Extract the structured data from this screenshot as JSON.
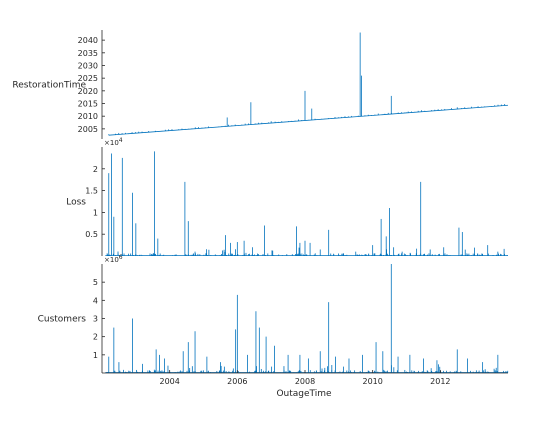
{
  "chart_data": {
    "type": "stacked-line",
    "xlabel": "OutageTime",
    "x_ticks": [
      2004,
      2006,
      2008,
      2010,
      2012
    ],
    "xlim": [
      2002.0,
      2014.0
    ],
    "colors": {
      "line": "#0072bd",
      "axis": "#262626"
    },
    "panels": [
      {
        "ylabel": "RestorationTime",
        "ylim": [
          2001,
          2044
        ],
        "y_ticks": [
          2005,
          2010,
          2015,
          2020,
          2025,
          2030,
          2035,
          2040
        ],
        "y_tick_labels": [
          "2005",
          "2010",
          "2015",
          "2020",
          "2025",
          "2030",
          "2035",
          "2040"
        ],
        "exponent": "",
        "baseline": {
          "start": [
            2002.2,
            2002.5
          ],
          "end": [
            2014.0,
            2014.3
          ]
        },
        "spikes": [
          {
            "x": 2005.7,
            "y": 2009.5
          },
          {
            "x": 2006.4,
            "y": 2015.5
          },
          {
            "x": 2007.0,
            "y": 2008.0
          },
          {
            "x": 2008.0,
            "y": 2020.0
          },
          {
            "x": 2008.2,
            "y": 2013.0
          },
          {
            "x": 2009.63,
            "y": 2043.0
          },
          {
            "x": 2009.67,
            "y": 2026.0
          },
          {
            "x": 2010.55,
            "y": 2018.0
          },
          {
            "x": 2011.0,
            "y": 2011.5
          },
          {
            "x": 2012.5,
            "y": 2013.5
          }
        ]
      },
      {
        "ylabel": "Loss",
        "ylim": [
          0,
          25000
        ],
        "y_ticks": [
          5000,
          10000,
          15000,
          20000
        ],
        "y_tick_labels": [
          "0.5",
          "1",
          "1.5",
          "2"
        ],
        "exponent": "10^4",
        "spikes": [
          {
            "x": 2002.2,
            "y": 19000
          },
          {
            "x": 2002.28,
            "y": 23500
          },
          {
            "x": 2002.35,
            "y": 9000
          },
          {
            "x": 2002.6,
            "y": 22500
          },
          {
            "x": 2002.9,
            "y": 14500
          },
          {
            "x": 2003.0,
            "y": 7500
          },
          {
            "x": 2003.55,
            "y": 24000
          },
          {
            "x": 2003.65,
            "y": 4000
          },
          {
            "x": 2004.45,
            "y": 17000
          },
          {
            "x": 2004.55,
            "y": 8000
          },
          {
            "x": 2004.75,
            "y": 1000
          },
          {
            "x": 2005.65,
            "y": 4800
          },
          {
            "x": 2005.8,
            "y": 3000
          },
          {
            "x": 2006.0,
            "y": 3200
          },
          {
            "x": 2006.2,
            "y": 3500
          },
          {
            "x": 2006.45,
            "y": 2000
          },
          {
            "x": 2006.8,
            "y": 7000
          },
          {
            "x": 2007.75,
            "y": 6800
          },
          {
            "x": 2007.85,
            "y": 3000
          },
          {
            "x": 2008.0,
            "y": 3500
          },
          {
            "x": 2008.15,
            "y": 3000
          },
          {
            "x": 2008.45,
            "y": 1500
          },
          {
            "x": 2008.7,
            "y": 6000
          },
          {
            "x": 2009.5,
            "y": 1000
          },
          {
            "x": 2010.0,
            "y": 2500
          },
          {
            "x": 2010.25,
            "y": 8500
          },
          {
            "x": 2010.4,
            "y": 4500
          },
          {
            "x": 2010.5,
            "y": 11000
          },
          {
            "x": 2010.62,
            "y": 2000
          },
          {
            "x": 2011.42,
            "y": 17000
          },
          {
            "x": 2011.7,
            "y": 1500
          },
          {
            "x": 2012.1,
            "y": 2000
          },
          {
            "x": 2012.55,
            "y": 6500
          },
          {
            "x": 2012.65,
            "y": 5500
          },
          {
            "x": 2013.4,
            "y": 2500
          },
          {
            "x": 2013.7,
            "y": 1000
          }
        ]
      },
      {
        "ylabel": "Customers",
        "ylim": [
          0,
          6000000
        ],
        "y_ticks": [
          1000000,
          2000000,
          3000000,
          4000000,
          5000000
        ],
        "y_tick_labels": [
          "1",
          "2",
          "3",
          "4",
          "5"
        ],
        "exponent": "10^6",
        "spikes": [
          {
            "x": 2002.2,
            "y": 900000
          },
          {
            "x": 2002.35,
            "y": 2500000
          },
          {
            "x": 2002.5,
            "y": 600000
          },
          {
            "x": 2002.9,
            "y": 3000000
          },
          {
            "x": 2003.2,
            "y": 500000
          },
          {
            "x": 2003.6,
            "y": 1300000
          },
          {
            "x": 2003.7,
            "y": 1000000
          },
          {
            "x": 2003.85,
            "y": 800000
          },
          {
            "x": 2004.4,
            "y": 1200000
          },
          {
            "x": 2004.55,
            "y": 1700000
          },
          {
            "x": 2004.75,
            "y": 2300000
          },
          {
            "x": 2005.1,
            "y": 900000
          },
          {
            "x": 2005.5,
            "y": 600000
          },
          {
            "x": 2005.95,
            "y": 2400000
          },
          {
            "x": 2006.0,
            "y": 4300000
          },
          {
            "x": 2006.3,
            "y": 1000000
          },
          {
            "x": 2006.55,
            "y": 3400000
          },
          {
            "x": 2006.65,
            "y": 2500000
          },
          {
            "x": 2006.85,
            "y": 2000000
          },
          {
            "x": 2007.1,
            "y": 1500000
          },
          {
            "x": 2007.5,
            "y": 1000000
          },
          {
            "x": 2007.85,
            "y": 1000000
          },
          {
            "x": 2008.1,
            "y": 800000
          },
          {
            "x": 2008.45,
            "y": 1200000
          },
          {
            "x": 2008.7,
            "y": 3900000
          },
          {
            "x": 2008.9,
            "y": 900000
          },
          {
            "x": 2009.3,
            "y": 800000
          },
          {
            "x": 2009.7,
            "y": 1000000
          },
          {
            "x": 2010.1,
            "y": 1700000
          },
          {
            "x": 2010.3,
            "y": 1200000
          },
          {
            "x": 2010.55,
            "y": 6000000
          },
          {
            "x": 2010.75,
            "y": 900000
          },
          {
            "x": 2011.1,
            "y": 1000000
          },
          {
            "x": 2011.5,
            "y": 800000
          },
          {
            "x": 2011.9,
            "y": 700000
          },
          {
            "x": 2012.5,
            "y": 1300000
          },
          {
            "x": 2012.8,
            "y": 800000
          },
          {
            "x": 2013.25,
            "y": 600000
          },
          {
            "x": 2013.7,
            "y": 1000000
          }
        ]
      }
    ]
  }
}
